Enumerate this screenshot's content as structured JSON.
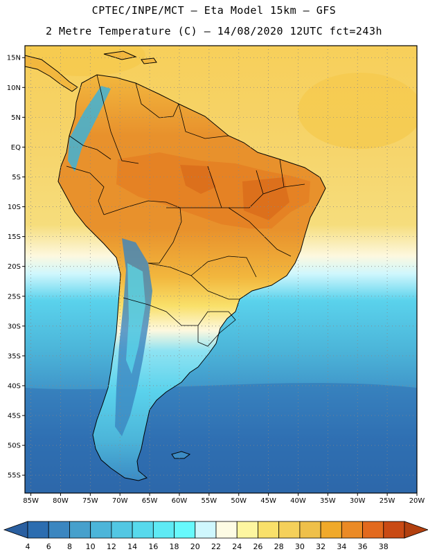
{
  "title_line1": "CPTEC/INPE/MCT –  Eta Model 15km – GFS",
  "title_line2": "2 Metre Temperature (C) – 14/08/2020 12UTC fct=243h",
  "lat_labels": [
    "15N",
    "10N",
    "5N",
    "EQ",
    "5S",
    "10S",
    "15S",
    "20S",
    "25S",
    "30S",
    "35S",
    "40S",
    "45S",
    "50S",
    "55S"
  ],
  "lat_values": [
    15,
    10,
    5,
    0,
    -5,
    -10,
    -15,
    -20,
    -25,
    -30,
    -35,
    -40,
    -45,
    -50,
    -55
  ],
  "lon_labels": [
    "85W",
    "80W",
    "75W",
    "70W",
    "65W",
    "60W",
    "55W",
    "50W",
    "45W",
    "40W",
    "35W",
    "30W",
    "25W",
    "20W"
  ],
  "lon_values": [
    -85,
    -80,
    -75,
    -70,
    -65,
    -60,
    -55,
    -50,
    -45,
    -40,
    -35,
    -30,
    -25,
    -20
  ],
  "map_extent": {
    "lon_min": -86,
    "lon_max": -20,
    "lat_min": -58,
    "lat_max": 17
  },
  "colorbar": {
    "labels": [
      "4",
      "6",
      "8",
      "10",
      "12",
      "14",
      "16",
      "18",
      "20",
      "22",
      "24",
      "26",
      "28",
      "30",
      "32",
      "34",
      "36",
      "38"
    ],
    "colors": [
      "#2c6db0",
      "#3b86c0",
      "#46a0cc",
      "#4cb5d9",
      "#52c7e3",
      "#57d9ec",
      "#5eeaf4",
      "#67f9fc",
      "#cff7fd",
      "#fdfbe4",
      "#fdf6a0",
      "#f9e06a",
      "#f5d05a",
      "#efc04a",
      "#f0a92a",
      "#eb8a25",
      "#e2691e",
      "#c94a14"
    ],
    "low_color": "#2a5fa0",
    "high_color": "#b2400f"
  },
  "palette": {
    "sea_warm": "#f7cf5a",
    "sea_mild": "#f6dd7c",
    "sea_pale": "#fdf8df",
    "sea_cool": "#5ad2ec",
    "sea_cold": "#3c8bc4",
    "sea_deep": "#2a5fa0",
    "land_hot": "#e88a26",
    "land_warm": "#f2b73e",
    "land_cool": "#5edcf0",
    "andes_cold": "#3b86c0"
  }
}
